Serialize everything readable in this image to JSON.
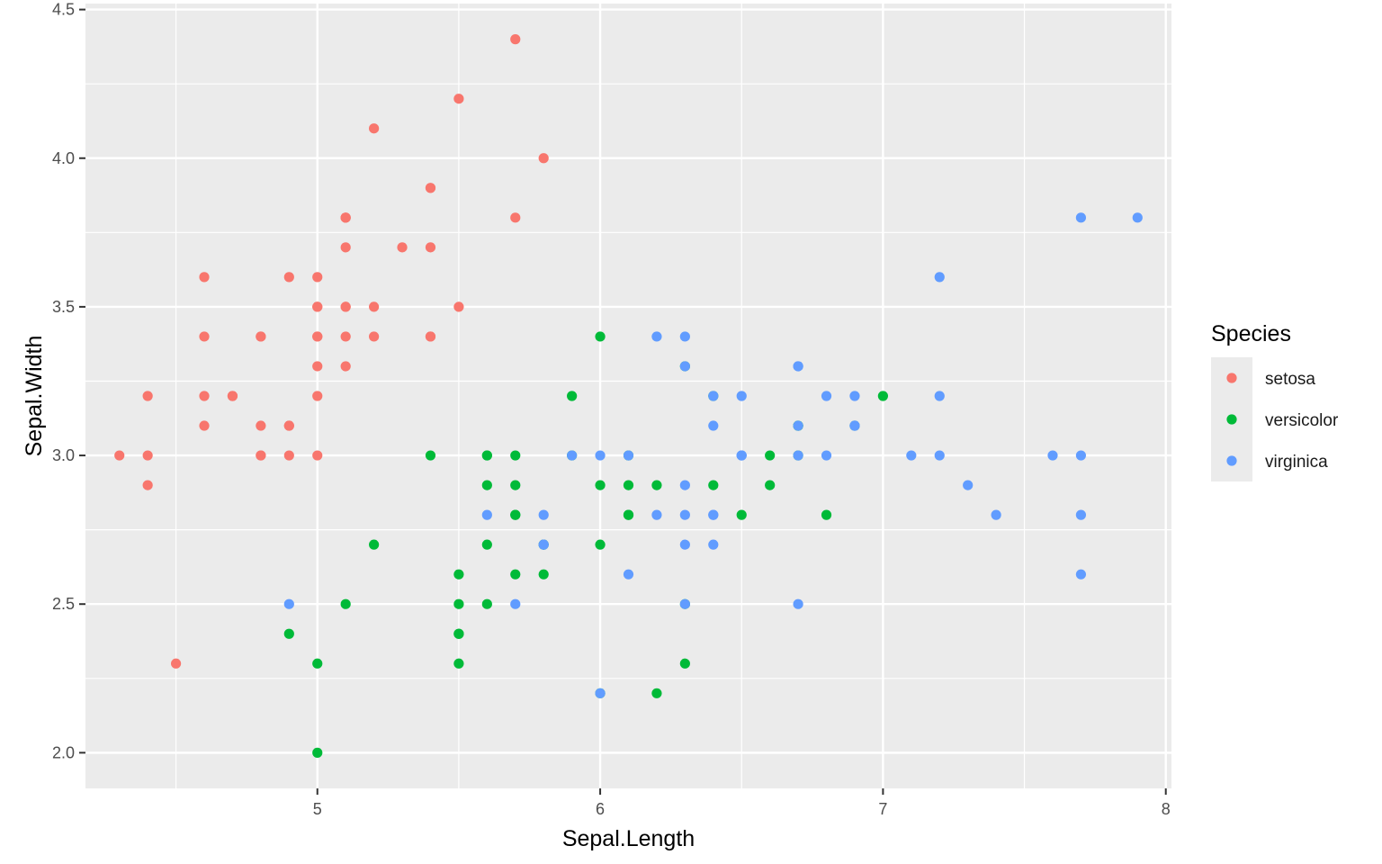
{
  "chart_data": {
    "type": "scatter",
    "xlabel": "Sepal.Length",
    "ylabel": "Sepal.Width",
    "xlim": [
      4.18,
      8.02
    ],
    "ylim": [
      1.88,
      4.52
    ],
    "x_ticks": [
      "5",
      "6",
      "7",
      "8"
    ],
    "y_ticks": [
      "2.0",
      "2.5",
      "3.0",
      "3.5",
      "4.0",
      "4.5"
    ],
    "grid": true,
    "panel_background": "#EBEBEB",
    "legend": {
      "title": "Species",
      "position": "right",
      "entries": [
        "setosa",
        "versicolor",
        "virginica"
      ]
    },
    "series": [
      {
        "name": "setosa",
        "color": "#F8766D",
        "points": [
          [
            5.1,
            3.5
          ],
          [
            4.9,
            3.0
          ],
          [
            4.7,
            3.2
          ],
          [
            4.6,
            3.1
          ],
          [
            5.0,
            3.6
          ],
          [
            5.4,
            3.9
          ],
          [
            4.6,
            3.4
          ],
          [
            5.0,
            3.4
          ],
          [
            4.4,
            2.9
          ],
          [
            4.9,
            3.1
          ],
          [
            5.4,
            3.7
          ],
          [
            4.8,
            3.4
          ],
          [
            4.8,
            3.0
          ],
          [
            4.3,
            3.0
          ],
          [
            5.8,
            4.0
          ],
          [
            5.7,
            4.4
          ],
          [
            5.4,
            3.9
          ],
          [
            5.1,
            3.5
          ],
          [
            5.7,
            3.8
          ],
          [
            5.1,
            3.8
          ],
          [
            5.4,
            3.4
          ],
          [
            5.1,
            3.7
          ],
          [
            4.6,
            3.6
          ],
          [
            5.1,
            3.3
          ],
          [
            4.8,
            3.4
          ],
          [
            5.0,
            3.0
          ],
          [
            5.0,
            3.4
          ],
          [
            5.2,
            3.5
          ],
          [
            5.2,
            3.4
          ],
          [
            4.7,
            3.2
          ],
          [
            4.8,
            3.1
          ],
          [
            5.4,
            3.4
          ],
          [
            5.2,
            4.1
          ],
          [
            5.5,
            4.2
          ],
          [
            4.9,
            3.1
          ],
          [
            5.0,
            3.2
          ],
          [
            5.5,
            3.5
          ],
          [
            4.9,
            3.6
          ],
          [
            4.4,
            3.0
          ],
          [
            5.1,
            3.4
          ],
          [
            5.0,
            3.5
          ],
          [
            4.5,
            2.3
          ],
          [
            4.4,
            3.2
          ],
          [
            5.0,
            3.5
          ],
          [
            5.1,
            3.8
          ],
          [
            4.8,
            3.0
          ],
          [
            5.1,
            3.8
          ],
          [
            4.6,
            3.2
          ],
          [
            5.3,
            3.7
          ],
          [
            5.0,
            3.3
          ]
        ]
      },
      {
        "name": "versicolor",
        "color": "#00BA38",
        "points": [
          [
            7.0,
            3.2
          ],
          [
            6.4,
            3.2
          ],
          [
            6.9,
            3.1
          ],
          [
            5.5,
            2.3
          ],
          [
            6.5,
            2.8
          ],
          [
            5.7,
            2.8
          ],
          [
            6.3,
            3.3
          ],
          [
            4.9,
            2.4
          ],
          [
            6.6,
            2.9
          ],
          [
            5.2,
            2.7
          ],
          [
            5.0,
            2.0
          ],
          [
            5.9,
            3.0
          ],
          [
            6.0,
            2.2
          ],
          [
            6.1,
            2.9
          ],
          [
            5.6,
            2.9
          ],
          [
            6.7,
            3.1
          ],
          [
            5.6,
            3.0
          ],
          [
            5.8,
            2.7
          ],
          [
            6.2,
            2.2
          ],
          [
            5.6,
            2.5
          ],
          [
            5.9,
            3.2
          ],
          [
            6.1,
            2.8
          ],
          [
            6.3,
            2.5
          ],
          [
            6.1,
            2.8
          ],
          [
            6.4,
            2.9
          ],
          [
            6.6,
            3.0
          ],
          [
            6.8,
            2.8
          ],
          [
            6.7,
            3.0
          ],
          [
            6.0,
            2.9
          ],
          [
            5.7,
            2.6
          ],
          [
            5.5,
            2.4
          ],
          [
            5.5,
            2.4
          ],
          [
            5.8,
            2.7
          ],
          [
            6.0,
            2.7
          ],
          [
            5.4,
            3.0
          ],
          [
            6.0,
            3.4
          ],
          [
            6.7,
            3.1
          ],
          [
            6.3,
            2.3
          ],
          [
            5.6,
            3.0
          ],
          [
            5.5,
            2.5
          ],
          [
            5.5,
            2.6
          ],
          [
            6.1,
            3.0
          ],
          [
            5.8,
            2.6
          ],
          [
            5.0,
            2.3
          ],
          [
            5.6,
            2.7
          ],
          [
            5.7,
            3.0
          ],
          [
            5.7,
            2.9
          ],
          [
            6.2,
            2.9
          ],
          [
            5.1,
            2.5
          ],
          [
            5.7,
            2.8
          ]
        ]
      },
      {
        "name": "virginica",
        "color": "#619CFF",
        "points": [
          [
            6.3,
            3.3
          ],
          [
            5.8,
            2.7
          ],
          [
            7.1,
            3.0
          ],
          [
            6.3,
            2.9
          ],
          [
            6.5,
            3.0
          ],
          [
            7.6,
            3.0
          ],
          [
            4.9,
            2.5
          ],
          [
            7.3,
            2.9
          ],
          [
            6.7,
            2.5
          ],
          [
            7.2,
            3.6
          ],
          [
            6.5,
            3.2
          ],
          [
            6.4,
            2.7
          ],
          [
            6.8,
            3.0
          ],
          [
            5.7,
            2.5
          ],
          [
            5.8,
            2.8
          ],
          [
            6.4,
            3.2
          ],
          [
            6.5,
            3.0
          ],
          [
            7.7,
            3.8
          ],
          [
            7.7,
            2.6
          ],
          [
            6.0,
            2.2
          ],
          [
            6.9,
            3.2
          ],
          [
            5.6,
            2.8
          ],
          [
            7.7,
            2.8
          ],
          [
            6.3,
            2.7
          ],
          [
            6.7,
            3.3
          ],
          [
            7.2,
            3.2
          ],
          [
            6.2,
            2.8
          ],
          [
            6.1,
            3.0
          ],
          [
            6.4,
            2.8
          ],
          [
            7.2,
            3.0
          ],
          [
            7.4,
            2.8
          ],
          [
            7.9,
            3.8
          ],
          [
            6.4,
            2.8
          ],
          [
            6.3,
            2.8
          ],
          [
            6.1,
            2.6
          ],
          [
            7.7,
            3.0
          ],
          [
            6.3,
            3.4
          ],
          [
            6.4,
            3.1
          ],
          [
            6.0,
            3.0
          ],
          [
            6.9,
            3.1
          ],
          [
            6.7,
            3.1
          ],
          [
            6.9,
            3.1
          ],
          [
            5.8,
            2.7
          ],
          [
            6.8,
            3.2
          ],
          [
            6.7,
            3.3
          ],
          [
            6.7,
            3.0
          ],
          [
            6.3,
            2.5
          ],
          [
            6.5,
            3.0
          ],
          [
            6.2,
            3.4
          ],
          [
            5.9,
            3.0
          ]
        ]
      }
    ]
  }
}
